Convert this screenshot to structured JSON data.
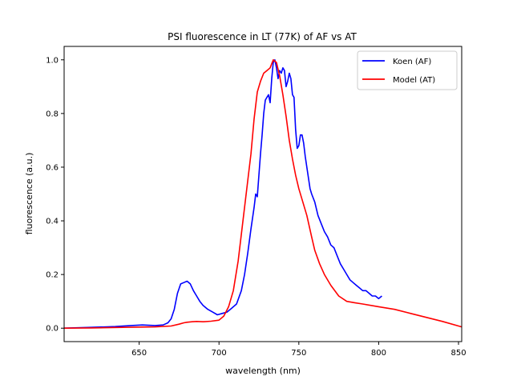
{
  "chart_data": {
    "type": "line",
    "title": "PSI fluorescence in LT (77K) of AF vs AT",
    "xlabel": "wavelength (nm)",
    "ylabel": "fluorescence (a.u.)",
    "xlim": [
      603,
      852
    ],
    "ylim": [
      -0.05,
      1.05
    ],
    "xticks": [
      650,
      700,
      750,
      800,
      850
    ],
    "yticks": [
      0.0,
      0.2,
      0.4,
      0.6,
      0.8,
      1.0
    ],
    "xtick_labels": [
      "650",
      "700",
      "750",
      "800",
      "850"
    ],
    "ytick_labels": [
      "0.0",
      "0.2",
      "0.4",
      "0.6",
      "0.8",
      "1.0"
    ],
    "grid": false,
    "legend_position": "top-right",
    "series": [
      {
        "name": "Koen (AF)",
        "color": "#0000ff",
        "x": [
          603,
          620,
          635,
          645,
          652,
          660,
          665,
          668,
          670,
          672,
          674,
          676,
          678,
          680,
          682,
          684,
          686,
          688,
          690,
          693,
          696,
          699,
          702,
          705,
          708,
          711,
          714,
          716,
          718,
          720,
          722,
          723,
          724,
          725,
          726,
          727,
          728,
          729,
          730,
          731,
          732,
          733,
          734,
          735,
          736,
          737,
          738,
          739,
          740,
          741,
          742,
          743,
          744,
          745,
          746,
          747,
          748,
          749,
          750,
          751,
          752,
          753,
          754,
          755,
          756,
          757,
          758,
          760,
          762,
          764,
          766,
          768,
          770,
          772,
          774,
          776,
          778,
          780,
          782,
          784,
          786,
          788,
          790,
          792,
          794,
          796,
          798,
          800,
          802
        ],
        "y": [
          0.0,
          0.003,
          0.006,
          0.01,
          0.012,
          0.01,
          0.012,
          0.02,
          0.035,
          0.07,
          0.13,
          0.165,
          0.17,
          0.175,
          0.165,
          0.14,
          0.12,
          0.1,
          0.085,
          0.07,
          0.06,
          0.05,
          0.055,
          0.06,
          0.075,
          0.09,
          0.14,
          0.2,
          0.28,
          0.37,
          0.45,
          0.5,
          0.49,
          0.57,
          0.65,
          0.72,
          0.8,
          0.85,
          0.86,
          0.87,
          0.84,
          0.93,
          0.99,
          1.0,
          0.97,
          0.93,
          0.96,
          0.95,
          0.97,
          0.96,
          0.9,
          0.92,
          0.95,
          0.93,
          0.87,
          0.86,
          0.74,
          0.67,
          0.68,
          0.72,
          0.72,
          0.69,
          0.64,
          0.6,
          0.56,
          0.52,
          0.5,
          0.47,
          0.42,
          0.39,
          0.36,
          0.34,
          0.31,
          0.3,
          0.27,
          0.24,
          0.22,
          0.2,
          0.18,
          0.17,
          0.16,
          0.15,
          0.14,
          0.14,
          0.13,
          0.12,
          0.12,
          0.11,
          0.12
        ]
      },
      {
        "name": "Model (AT)",
        "color": "#ff0000",
        "x": [
          603,
          620,
          640,
          660,
          670,
          675,
          678,
          680,
          683,
          686,
          690,
          695,
          700,
          703,
          706,
          709,
          712,
          715,
          718,
          720,
          722,
          724,
          726,
          728,
          730,
          732,
          734,
          736,
          738,
          740,
          742,
          744,
          746,
          748,
          750,
          752,
          755,
          758,
          760,
          763,
          766,
          770,
          775,
          780,
          785,
          790,
          800,
          810,
          820,
          830,
          840,
          852
        ],
        "y": [
          0.0,
          0.001,
          0.003,
          0.005,
          0.008,
          0.015,
          0.02,
          0.022,
          0.024,
          0.025,
          0.024,
          0.026,
          0.03,
          0.045,
          0.08,
          0.14,
          0.25,
          0.4,
          0.55,
          0.65,
          0.78,
          0.88,
          0.92,
          0.95,
          0.96,
          0.97,
          1.0,
          0.99,
          0.94,
          0.87,
          0.79,
          0.7,
          0.63,
          0.57,
          0.52,
          0.48,
          0.42,
          0.34,
          0.29,
          0.24,
          0.2,
          0.16,
          0.12,
          0.1,
          0.095,
          0.09,
          0.08,
          0.07,
          0.055,
          0.04,
          0.025,
          0.005
        ]
      }
    ]
  }
}
